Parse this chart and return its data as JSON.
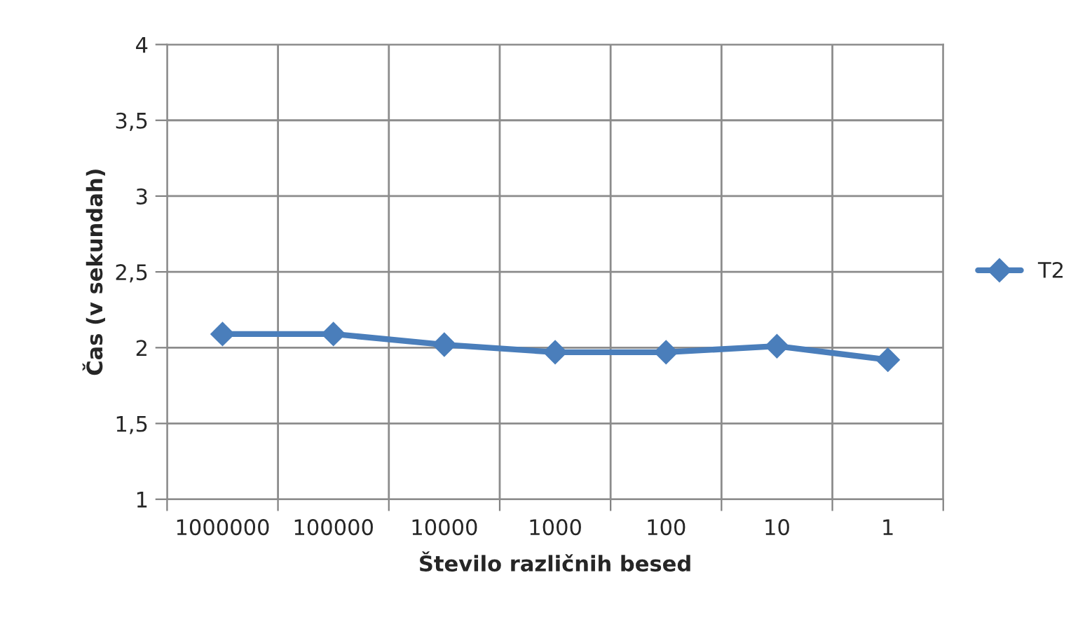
{
  "chart_data": {
    "type": "line",
    "xlabel": "Število različnih besed",
    "ylabel": "Čas (v sekundah)",
    "categories": [
      "1000000",
      "100000",
      "10000",
      "1000",
      "100",
      "10",
      "1"
    ],
    "series": [
      {
        "name": "T2",
        "color": "#4a7ebb",
        "values": [
          2.09,
          2.09,
          2.02,
          1.97,
          1.97,
          2.01,
          1.92
        ]
      }
    ],
    "ylim": [
      1,
      4
    ],
    "yticks": [
      {
        "value": 1,
        "label": "1"
      },
      {
        "value": 1.5,
        "label": "1,5"
      },
      {
        "value": 2,
        "label": "2"
      },
      {
        "value": 2.5,
        "label": "2,5"
      },
      {
        "value": 3,
        "label": "3"
      },
      {
        "value": 3.5,
        "label": "3,5"
      },
      {
        "value": 4,
        "label": "4"
      }
    ],
    "grid": true,
    "legend": "right",
    "marker": "diamond",
    "line_style": "solid"
  }
}
